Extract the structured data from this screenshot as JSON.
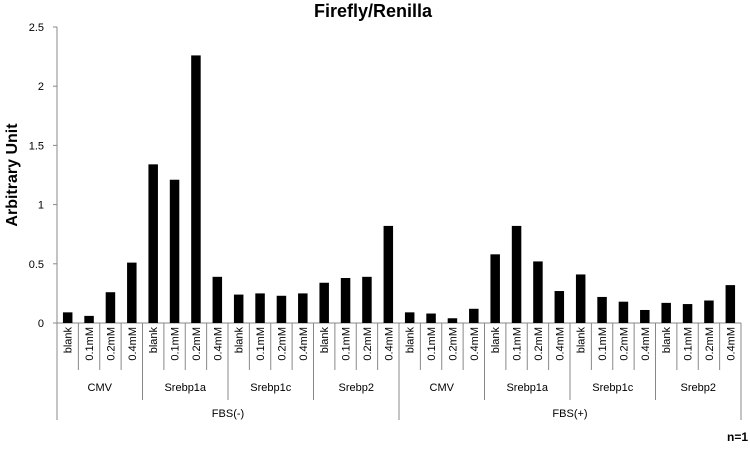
{
  "chart_data": {
    "type": "bar",
    "title": "Firefly/Renilla",
    "ylabel": "Arbitrary Unit",
    "xlabel": "",
    "ylim": [
      0,
      2.5
    ],
    "yticks": [
      "0",
      "0.5",
      "1",
      "1.5",
      "2",
      "2.5"
    ],
    "ytick_values": [
      0,
      0.5,
      1,
      1.5,
      2,
      2.5
    ],
    "grid": false,
    "legend": "none",
    "bar_color": "#000000",
    "categories": [
      "blank",
      "0.1mM",
      "0.2mM",
      "0.4mM",
      "blank",
      "0.1mM",
      "0.2mM",
      "0.4mM",
      "blank",
      "0.1mM",
      "0.2mM",
      "0.4mM",
      "blank",
      "0.1mM",
      "0.2mM",
      "0.4mM",
      "blank",
      "0.1mM",
      "0.2mM",
      "0.4mM",
      "blank",
      "0.1mM",
      "0.2mM",
      "0.4mM",
      "blank",
      "0.1mM",
      "0.2mM",
      "0.4mM",
      "blank",
      "0.1mM",
      "0.2mM",
      "0.4mM"
    ],
    "values": [
      0.09,
      0.06,
      0.26,
      0.51,
      1.34,
      1.21,
      2.26,
      0.39,
      0.24,
      0.25,
      0.23,
      0.25,
      0.34,
      0.38,
      0.39,
      0.82,
      0.09,
      0.08,
      0.04,
      0.12,
      0.58,
      0.82,
      0.52,
      0.27,
      0.41,
      0.22,
      0.18,
      0.11,
      0.17,
      0.16,
      0.19,
      0.32
    ],
    "groups_level2": [
      "CMV",
      "Srebp1a",
      "Srebp1c",
      "Srebp2",
      "CMV",
      "Srebp1a",
      "Srebp1c",
      "Srebp2"
    ],
    "groups_level3": [
      "FBS(-)",
      "FBS(+)"
    ],
    "annotation": "n=1"
  }
}
